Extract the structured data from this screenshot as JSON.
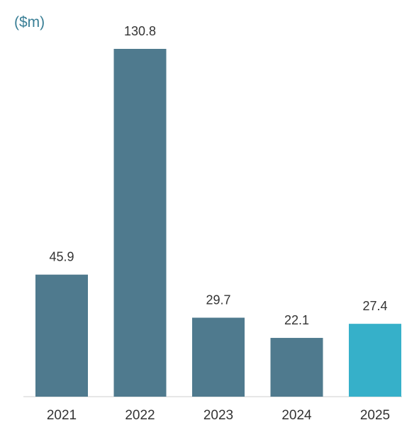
{
  "chart_data": {
    "type": "bar",
    "title": "",
    "unit_label": "($m)",
    "xlabel": "",
    "ylabel": "",
    "categories": [
      "2021",
      "2022",
      "2023",
      "2024",
      "2025"
    ],
    "values": [
      45.9,
      130.8,
      29.7,
      22.1,
      27.4
    ],
    "value_labels": [
      "45.9",
      "130.8",
      "29.7",
      "22.1",
      "27.4"
    ],
    "ylim": [
      0,
      130.8
    ],
    "grid": false,
    "legend": "none",
    "colors": {
      "default_bar": "#4f7a8e",
      "highlight_bar": "#36b0c9",
      "unit_label": "#3a7f96",
      "baseline": "#cfcfcf"
    },
    "highlight_index": 4
  }
}
